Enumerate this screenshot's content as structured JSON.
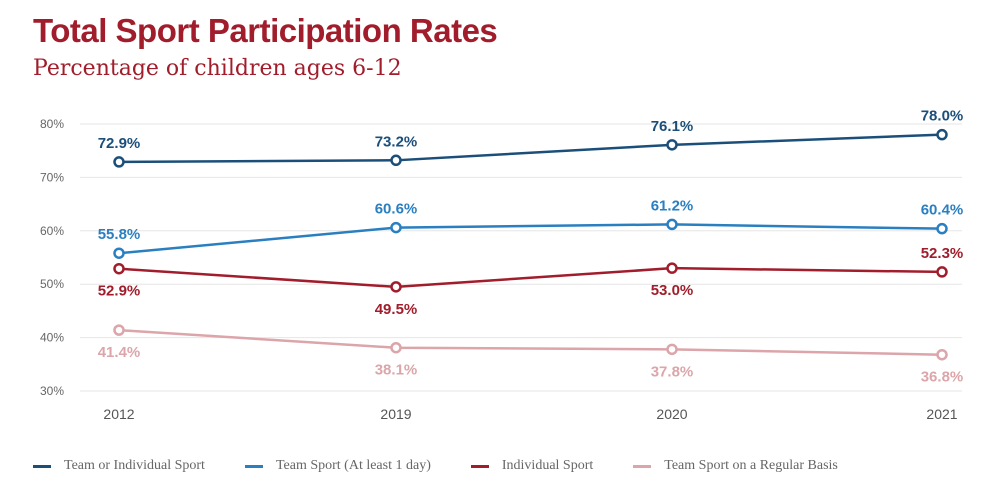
{
  "chart_data": {
    "type": "line",
    "title": "Total Sport Participation Rates",
    "subtitle": "Percentage of children ages 6-12",
    "categories": [
      "2012",
      "2019",
      "2020",
      "2021"
    ],
    "ylim": [
      30,
      80
    ],
    "yticks": [
      "30%",
      "40%",
      "50%",
      "60%",
      "70%",
      "80%"
    ],
    "grid": true,
    "legend_position": "bottom",
    "series": [
      {
        "name": "Team or Individual Sport",
        "color": "#1b4f7a",
        "values": [
          72.9,
          73.2,
          76.1,
          78.0
        ],
        "labels": [
          "72.9%",
          "73.2%",
          "76.1%",
          "78.0%"
        ],
        "label_pos": [
          "above",
          "above",
          "above",
          "above"
        ]
      },
      {
        "name": "Team Sport (At least 1 day)",
        "color": "#2a7fc1",
        "values": [
          55.8,
          60.6,
          61.2,
          60.4
        ],
        "labels": [
          "55.8%",
          "60.6%",
          "61.2%",
          "60.4%"
        ],
        "label_pos": [
          "above",
          "above",
          "above",
          "above"
        ]
      },
      {
        "name": "Individual Sport",
        "color": "#a11d2b",
        "values": [
          52.9,
          49.5,
          53.0,
          52.3
        ],
        "labels": [
          "52.9%",
          "49.5%",
          "53.0%",
          "52.3%"
        ],
        "label_pos": [
          "below",
          "below",
          "below",
          "above"
        ]
      },
      {
        "name": "Team Sport on a Regular Basis",
        "color": "#dba5aa",
        "values": [
          41.4,
          38.1,
          37.8,
          36.8
        ],
        "labels": [
          "41.4%",
          "38.1%",
          "37.8%",
          "36.8%"
        ],
        "label_pos": [
          "below",
          "below",
          "below",
          "below"
        ]
      }
    ]
  }
}
